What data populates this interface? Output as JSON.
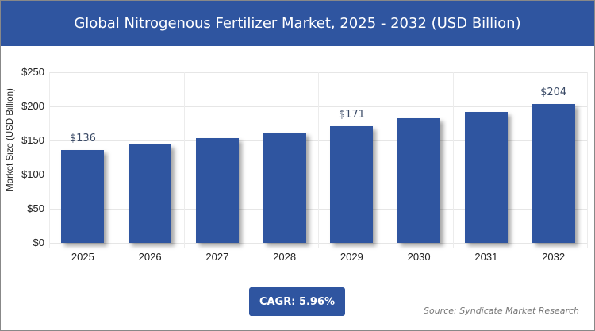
{
  "title": "Global Nitrogenous Fertilizer Market, 2025 - 2032 (USD Billion)",
  "cagr_label": "CAGR: 5.96%",
  "source": "Source: Syndicate Market Research",
  "colors": {
    "bar": "#2f55a0",
    "header": "#2f55a0"
  },
  "chart_data": {
    "type": "bar",
    "title": "Global Nitrogenous Fertilizer Market, 2025 - 2032 (USD Billion)",
    "xlabel": "",
    "ylabel": "Market Size (USD Billion)",
    "categories": [
      "2025",
      "2026",
      "2027",
      "2028",
      "2029",
      "2030",
      "2031",
      "2032"
    ],
    "values": [
      136,
      144,
      153,
      162,
      171,
      182,
      192,
      204
    ],
    "data_labels": {
      "2025": "$136",
      "2029": "$171",
      "2032": "$204"
    },
    "ylim": [
      0,
      250
    ],
    "yticks": [
      "$0",
      "$50",
      "$100",
      "$150",
      "$200",
      "$250"
    ],
    "grid": true,
    "legend": null,
    "annotations": [
      "CAGR: 5.96%",
      "Source: Syndicate Market Research"
    ]
  }
}
